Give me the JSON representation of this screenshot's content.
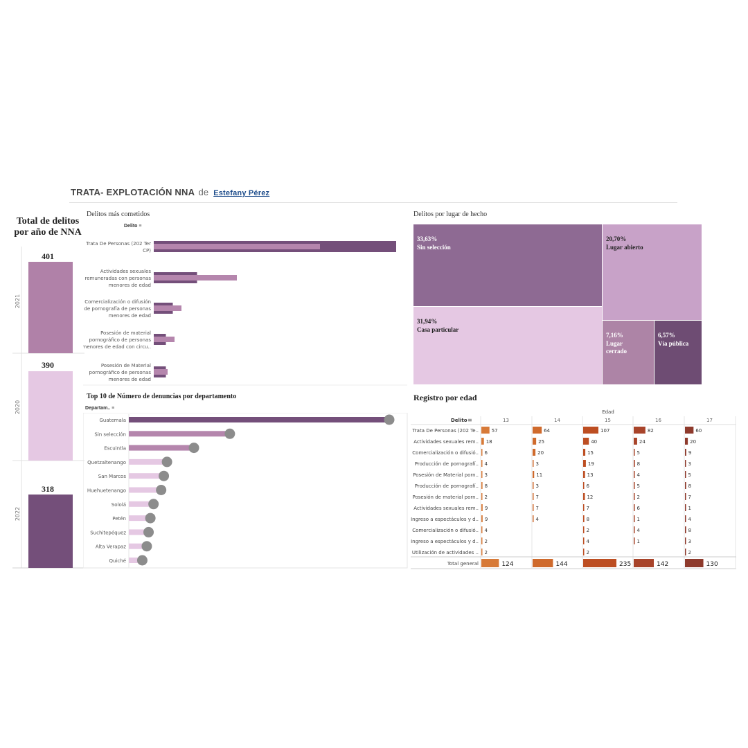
{
  "header": {
    "title": "TRATA- EXPLOTACIÓN NNA",
    "by": "de",
    "author": "Estefany Pérez"
  },
  "totals": {
    "title_line1": "Total de delitos",
    "title_line2": "por año de NNA",
    "years": [
      {
        "year": "2021",
        "value": "401",
        "color": "#b081a8"
      },
      {
        "year": "2020",
        "value": "390",
        "color": "#e5c8e3"
      },
      {
        "year": "2022",
        "value": "318",
        "color": "#744f7a"
      }
    ]
  },
  "delitos": {
    "title": "Delitos más cometidos",
    "column_header": "Delito",
    "labels": [
      [
        "Trata De Personas (202 Ter",
        "CP)"
      ],
      [
        "Actividades sexuales",
        "remuneradas con personas",
        "menores de edad"
      ],
      [
        "Comercialización o difusión",
        "de pornografía de personas",
        "menores de edad"
      ],
      [
        "Posesión de material",
        "pornográfico de personas",
        "menores de edad con circu.."
      ],
      [
        "Posesión de Material",
        "pornográfico de personas",
        "menores de edad"
      ]
    ]
  },
  "chart_data": [
    {
      "type": "bar",
      "name": "Delitos más cometidos",
      "categories": [
        "Trata De Personas (202 Ter CP)",
        "Actividades sexuales remuneradas con personas menores de edad",
        "Comercialización o difusión de pornografía de personas menores de edad",
        "Posesión de material pornográfico de personas menores de edad con circu..",
        "Posesión de Material pornográfico de personas menores de edad"
      ],
      "series": [
        {
          "values": [
            140,
            25,
            11,
            7,
            7
          ],
          "color": "#744f7a"
        },
        {
          "values": [
            96,
            48,
            16,
            12,
            8
          ],
          "color": "#b586ad"
        }
      ]
    },
    {
      "type": "bar",
      "name": "Top 10 de Número de denuncias por departamento",
      "categories": [
        "Guatemala",
        "Sin selección",
        "Escuintla",
        "Quetzaltenango",
        "San Marcos",
        "Huehuetenango",
        "Sololá",
        "Petén",
        "Suchitepéquez",
        "Alta Verapaz",
        "Quiché"
      ],
      "values": [
        580,
        225,
        145,
        85,
        78,
        72,
        55,
        48,
        44,
        40,
        30
      ],
      "colors": [
        "#744f7a",
        "#b586ad",
        "#b586ad",
        "#e5c8e3",
        "#e5c8e3",
        "#e5c8e3",
        "#e5c8e3",
        "#e5c8e3",
        "#e5c8e3",
        "#e5c8e3",
        "#e5c8e3"
      ]
    },
    {
      "type": "treemap",
      "name": "Delitos por lugar de hecho",
      "items": [
        {
          "pct": "33,63%",
          "label": [
            "Sin selección"
          ],
          "value": 33.63,
          "color": "#8e6a93"
        },
        {
          "pct": "31,94%",
          "label": [
            "Casa particular"
          ],
          "value": 31.94,
          "color": "#e5c8e3"
        },
        {
          "pct": "20,70%",
          "label": [
            "Lugar abierto"
          ],
          "value": 20.7,
          "color": "#c8a2c8"
        },
        {
          "pct": "7,16%",
          "label": [
            "Lugar",
            "cerrado"
          ],
          "value": 7.16,
          "color": "#ad84a6"
        },
        {
          "pct": "6,57%",
          "label": [
            "Vía pública"
          ],
          "value": 6.57,
          "color": "#6e4c73"
        }
      ]
    },
    {
      "type": "table",
      "name": "Registro por edad",
      "columns": [
        "13",
        "14",
        "15",
        "16",
        "17"
      ],
      "rows": [
        {
          "label": "Trata De Personas (202 Te..",
          "values": [
            57,
            64,
            107,
            82,
            60
          ]
        },
        {
          "label": "Actividades sexuales rem..",
          "values": [
            18,
            25,
            40,
            24,
            20
          ]
        },
        {
          "label": "Comercialización o difusió..",
          "values": [
            6,
            20,
            15,
            5,
            9
          ]
        },
        {
          "label": "Producción de pornografí..",
          "values": [
            4,
            3,
            19,
            8,
            3
          ]
        },
        {
          "label": "Posesión de Material porn..",
          "values": [
            3,
            11,
            13,
            4,
            5
          ]
        },
        {
          "label": "Producción de pornografí..",
          "values": [
            8,
            3,
            6,
            5,
            8
          ]
        },
        {
          "label": "Posesión de material porn..",
          "values": [
            2,
            7,
            12,
            2,
            7
          ]
        },
        {
          "label": "Actividades sexuales rem..",
          "values": [
            9,
            7,
            7,
            6,
            1
          ]
        },
        {
          "label": "Ingreso a espectáculos y d..",
          "values": [
            9,
            4,
            8,
            1,
            4
          ]
        },
        {
          "label": "Comercialización o difusió..",
          "values": [
            4,
            null,
            2,
            4,
            8
          ]
        },
        {
          "label": "Ingreso a espectáculos y d..",
          "values": [
            2,
            null,
            4,
            1,
            3
          ]
        },
        {
          "label": "Utilización de actividades ..",
          "values": [
            2,
            null,
            2,
            null,
            2
          ]
        }
      ],
      "total_label": "Total general",
      "totals": [
        124,
        144,
        235,
        142,
        130
      ],
      "colors": [
        "#d77a38",
        "#cf6a2c",
        "#bd4e22",
        "#a8442a",
        "#8e3a2c"
      ]
    }
  ],
  "departamentos": {
    "title": "Top 10 de Número de denuncias por departamento",
    "column_header": "Departam.."
  },
  "treemap": {
    "title": "Delitos por lugar de hecho"
  },
  "edad": {
    "title": "Registro por edad",
    "column_group": "Edad",
    "row_header": "Delito"
  }
}
